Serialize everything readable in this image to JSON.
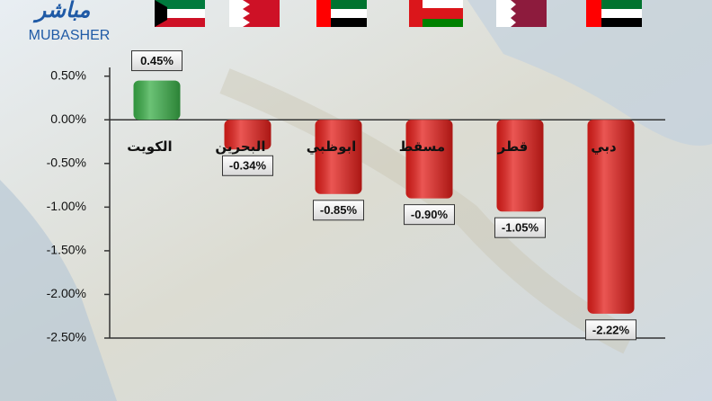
{
  "logo": {
    "arabic": "مباشر",
    "latin": "MUBASHER"
  },
  "chart_data": {
    "type": "bar",
    "categories": [
      "الكويت",
      "البحرين",
      "ابوظبي",
      "مسقط",
      "قطر",
      "دبي"
    ],
    "values": [
      0.45,
      -0.34,
      -0.85,
      -0.9,
      -1.05,
      -2.22
    ],
    "value_labels": [
      "0.45%",
      "-0.34%",
      "-0.85%",
      "-0.90%",
      "-1.05%",
      "-2.22%"
    ],
    "colors": [
      "#3aae48",
      "#e41e1a",
      "#e41e1a",
      "#e41e1a",
      "#e41e1a",
      "#e41e1a"
    ],
    "ylim": [
      -2.5,
      0.6
    ],
    "yticks": [
      {
        "value": 0.5,
        "label": "0.50%"
      },
      {
        "value": 0,
        "label": "0.00%"
      },
      {
        "value": -0.5,
        "label": "-0.50%"
      },
      {
        "value": -1,
        "label": "-1.00%"
      },
      {
        "value": -1.5,
        "label": "-1.50%"
      },
      {
        "value": -2,
        "label": "-2.00%"
      },
      {
        "value": -2.5,
        "label": "-2.50%"
      }
    ]
  }
}
